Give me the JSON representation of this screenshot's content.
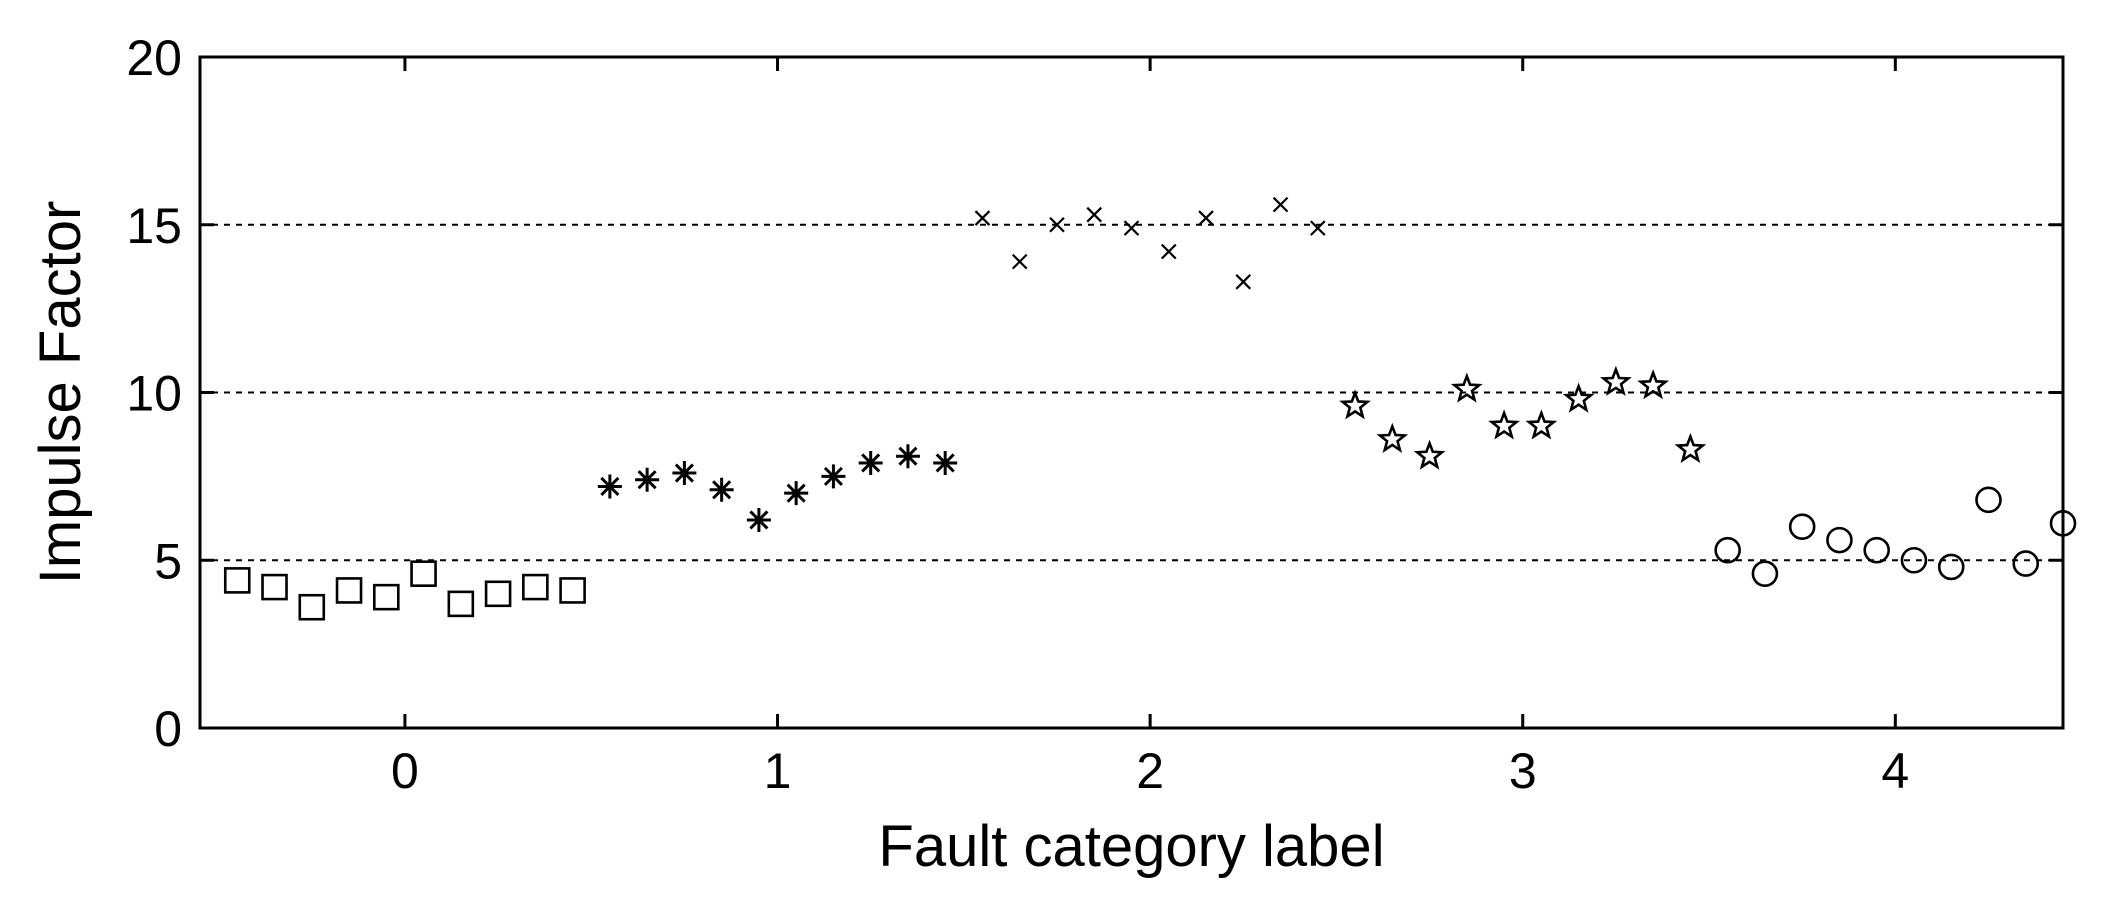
{
  "chart_data": {
    "type": "scatter",
    "title": "",
    "xlabel": "Fault category label",
    "ylabel": "Impulse Factor",
    "xlim": [
      -0.55,
      4.45
    ],
    "ylim": [
      0,
      20
    ],
    "x_ticks": [
      0,
      1,
      2,
      3,
      4
    ],
    "y_ticks": [
      0,
      5,
      10,
      15,
      20
    ],
    "x_tick_labels": [
      "0",
      "1",
      "2",
      "3",
      "4"
    ],
    "y_tick_labels": [
      "0",
      "5",
      "10",
      "15",
      "20"
    ],
    "grid": {
      "y": "dashed",
      "x": "none",
      "dashed_at": [
        5,
        10,
        15
      ]
    },
    "legend": "none",
    "series": [
      {
        "marker": "square",
        "category": 0,
        "points": [
          [
            -0.45,
            4.4
          ],
          [
            -0.35,
            4.2
          ],
          [
            -0.25,
            3.6
          ],
          [
            -0.15,
            4.1
          ],
          [
            -0.05,
            3.9
          ],
          [
            0.05,
            4.6
          ],
          [
            0.15,
            3.7
          ],
          [
            0.25,
            4.0
          ],
          [
            0.35,
            4.2
          ],
          [
            0.45,
            4.1
          ]
        ]
      },
      {
        "marker": "asterisk",
        "category": 1,
        "points": [
          [
            0.55,
            7.2
          ],
          [
            0.65,
            7.4
          ],
          [
            0.75,
            7.6
          ],
          [
            0.85,
            7.1
          ],
          [
            0.95,
            6.2
          ],
          [
            1.05,
            7.0
          ],
          [
            1.15,
            7.5
          ],
          [
            1.25,
            7.9
          ],
          [
            1.35,
            8.1
          ],
          [
            1.45,
            7.9
          ]
        ]
      },
      {
        "marker": "x",
        "category": 2,
        "points": [
          [
            1.55,
            15.2
          ],
          [
            1.65,
            13.9
          ],
          [
            1.75,
            15.0
          ],
          [
            1.85,
            15.3
          ],
          [
            1.95,
            14.9
          ],
          [
            2.05,
            14.2
          ],
          [
            2.15,
            15.2
          ],
          [
            2.25,
            13.3
          ],
          [
            2.35,
            15.6
          ],
          [
            2.45,
            14.9
          ]
        ]
      },
      {
        "marker": "pentagram",
        "category": 3,
        "points": [
          [
            2.55,
            9.6
          ],
          [
            2.65,
            8.6
          ],
          [
            2.75,
            8.1
          ],
          [
            2.85,
            10.1
          ],
          [
            2.95,
            9.0
          ],
          [
            3.05,
            9.0
          ],
          [
            3.15,
            9.8
          ],
          [
            3.25,
            10.3
          ],
          [
            3.35,
            10.2
          ],
          [
            3.45,
            8.3
          ]
        ]
      },
      {
        "marker": "circle",
        "category": 4,
        "points": [
          [
            3.55,
            5.3
          ],
          [
            3.65,
            4.6
          ],
          [
            3.75,
            6.0
          ],
          [
            3.85,
            5.6
          ],
          [
            3.95,
            5.3
          ],
          [
            4.05,
            5.0
          ],
          [
            4.15,
            4.8
          ],
          [
            4.25,
            6.8
          ],
          [
            4.35,
            4.9
          ],
          [
            4.45,
            6.1
          ]
        ]
      }
    ]
  }
}
